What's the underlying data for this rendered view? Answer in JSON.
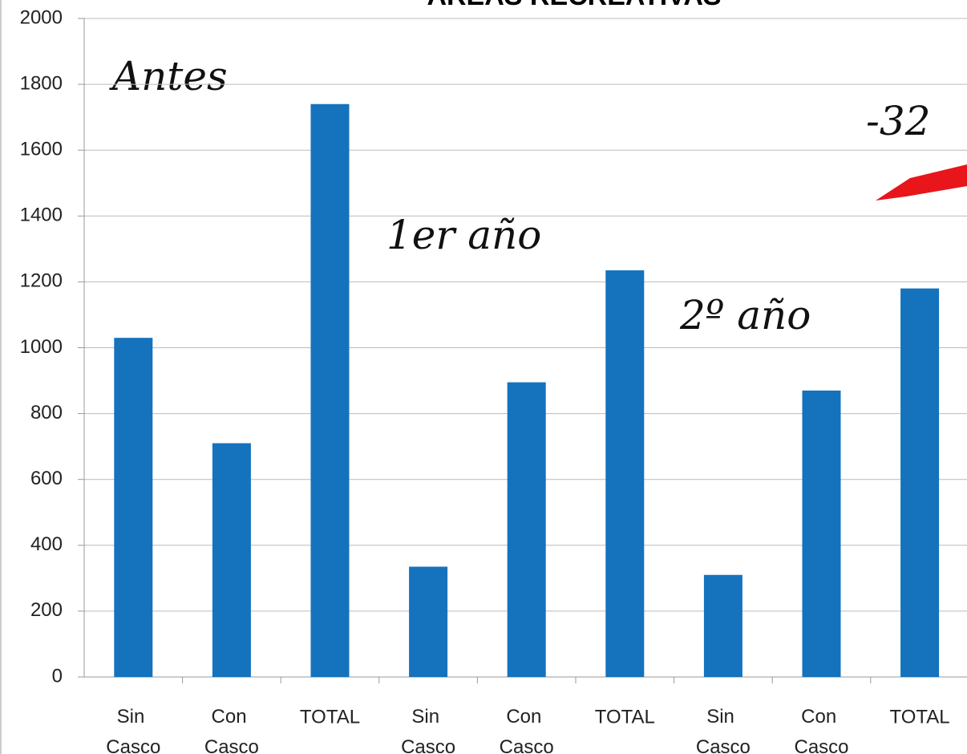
{
  "chart_data": {
    "type": "bar",
    "title": "ÁREAS RECREATIVAS",
    "categories": [
      "Sin Casco",
      "Con Casco",
      "TOTAL",
      "Sin Casco",
      "Con Casco",
      "TOTAL",
      "Sin Casco",
      "Con Casco",
      "TOTAL"
    ],
    "values": [
      1030,
      710,
      1740,
      335,
      895,
      1235,
      310,
      870,
      1180
    ],
    "color": "#1572bd",
    "ylim": [
      0,
      2000
    ],
    "yticks": [
      0,
      200,
      400,
      600,
      800,
      1000,
      1200,
      1400,
      1600,
      1800,
      2000
    ],
    "grid": true,
    "annotations": [
      "Antes",
      "1er año",
      "2º año",
      "-32"
    ]
  }
}
